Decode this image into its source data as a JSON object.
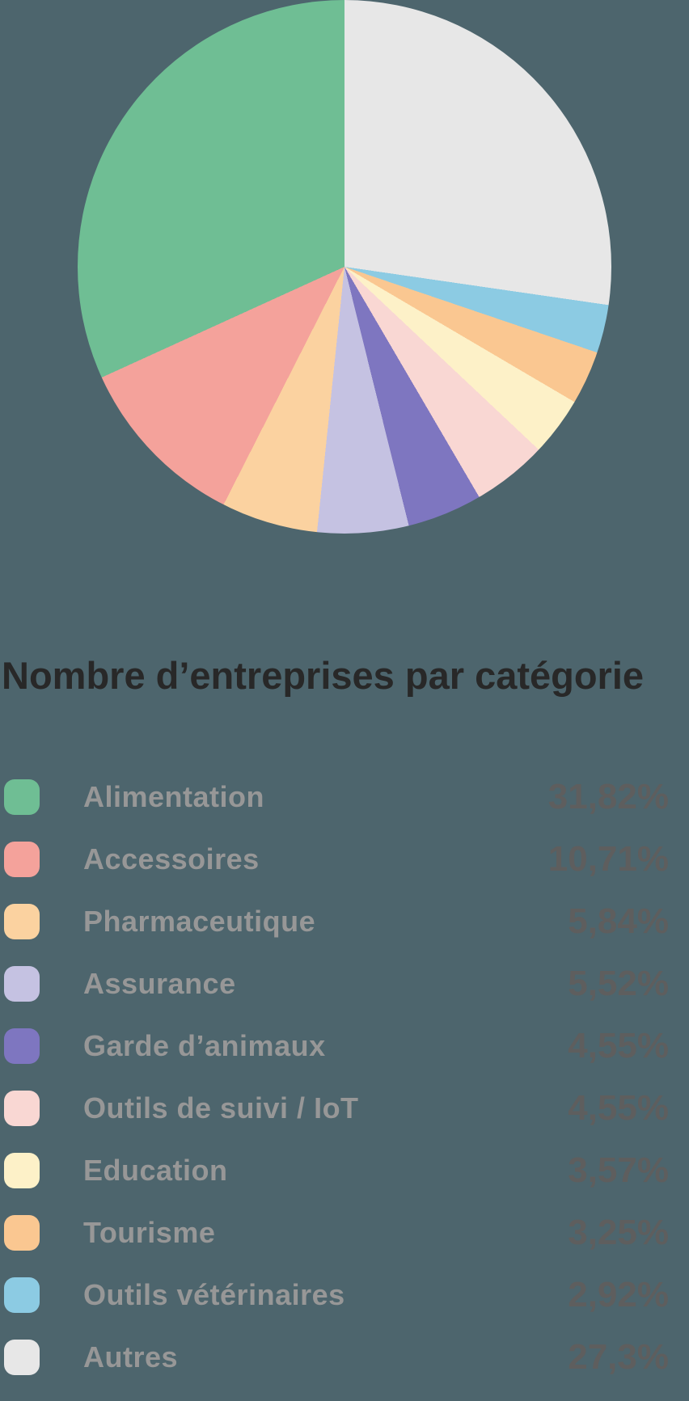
{
  "background_color": "#4d656d",
  "title": "Nombre d’entreprises par catégorie",
  "chart_data": {
    "type": "pie",
    "title": "Nombre d’entreprises par catégorie",
    "categories": [
      "Alimentation",
      "Accessoires",
      "Pharmaceutique",
      "Assurance",
      "Garde d’animaux",
      "Outils de suivi / IoT",
      "Education",
      "Tourisme",
      "Outils vétérinaires",
      "Autres"
    ],
    "values": [
      31.82,
      10.71,
      5.84,
      5.52,
      4.55,
      4.55,
      3.57,
      3.25,
      2.92,
      27.3
    ],
    "value_labels": [
      "31,82%",
      "10,71%",
      "5,84%",
      "5,52%",
      "4,55%",
      "4,55%",
      "3,57%",
      "3,25%",
      "2,92%",
      "27,3%"
    ],
    "colors": [
      "#6fbe94",
      "#f4a29b",
      "#fbd2a0",
      "#c5c2e2",
      "#7e76c0",
      "#f9d7d3",
      "#fdf1c8",
      "#fac791",
      "#8ccbe3",
      "#e7e7e7"
    ],
    "layout": {
      "start_angle": "top",
      "direction": "counterclockwise",
      "legend_position": "bottom",
      "grid": false
    }
  },
  "legend": {
    "items": [
      {
        "label": "Alimentation",
        "value_label": "31,82%",
        "color": "#6fbe94"
      },
      {
        "label": "Accessoires",
        "value_label": "10,71%",
        "color": "#f4a29b"
      },
      {
        "label": "Pharmaceutique",
        "value_label": "5,84%",
        "color": "#fbd2a0"
      },
      {
        "label": "Assurance",
        "value_label": "5,52%",
        "color": "#c5c2e2"
      },
      {
        "label": "Garde d’animaux",
        "value_label": "4,55%",
        "color": "#7e76c0"
      },
      {
        "label": "Outils de suivi / IoT",
        "value_label": "4,55%",
        "color": "#f9d7d3"
      },
      {
        "label": "Education",
        "value_label": "3,57%",
        "color": "#fdf1c8"
      },
      {
        "label": "Tourisme",
        "value_label": "3,25%",
        "color": "#fac791"
      },
      {
        "label": "Outils vétérinaires",
        "value_label": "2,92%",
        "color": "#8ccbe3"
      },
      {
        "label": "Autres",
        "value_label": "27,3%",
        "color": "#e7e7e7"
      }
    ]
  }
}
